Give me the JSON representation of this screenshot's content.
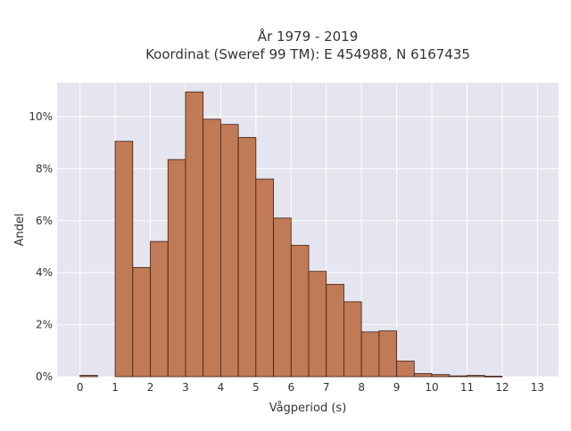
{
  "chart_data": {
    "type": "bar",
    "title_line1": "År 1979 - 2019",
    "title_line2": "Koordinat (Sweref 99 TM): E 454988, N 6167435",
    "xlabel": "Vågperiod (s)",
    "ylabel": "Andel",
    "bin_width": 0.5,
    "bin_starts": [
      0,
      1,
      1.5,
      2,
      2.5,
      3,
      3.5,
      4,
      4.5,
      5,
      5.5,
      6,
      6.5,
      7,
      7.5,
      8,
      8.5,
      9,
      9.5,
      10,
      10.5,
      11,
      11.5
    ],
    "values": [
      0.05,
      9.05,
      4.2,
      5.2,
      8.35,
      10.95,
      9.9,
      9.7,
      9.2,
      7.6,
      6.1,
      5.05,
      4.05,
      3.55,
      2.88,
      1.72,
      1.76,
      0.6,
      0.12,
      0.08,
      0.03,
      0.05,
      0.02
    ],
    "xlim": [
      -0.65,
      13.6
    ],
    "ylim": [
      0,
      11.3
    ],
    "x_ticks": [
      0,
      1,
      2,
      3,
      4,
      5,
      6,
      7,
      8,
      9,
      10,
      11,
      12,
      13
    ],
    "x_tick_labels": [
      "0",
      "1",
      "2",
      "3",
      "4",
      "5",
      "6",
      "7",
      "8",
      "9",
      "10",
      "11",
      "12",
      "13"
    ],
    "y_ticks": [
      0,
      2,
      4,
      6,
      8,
      10
    ],
    "y_tick_labels": [
      "0%",
      "2%",
      "4%",
      "6%",
      "8%",
      "10%"
    ],
    "grid": true,
    "colors": {
      "bar_fill": "#c17a56",
      "bar_edge": "#3d1f12",
      "plot_bg": "#e5e5ef",
      "grid": "#ffffff"
    }
  }
}
